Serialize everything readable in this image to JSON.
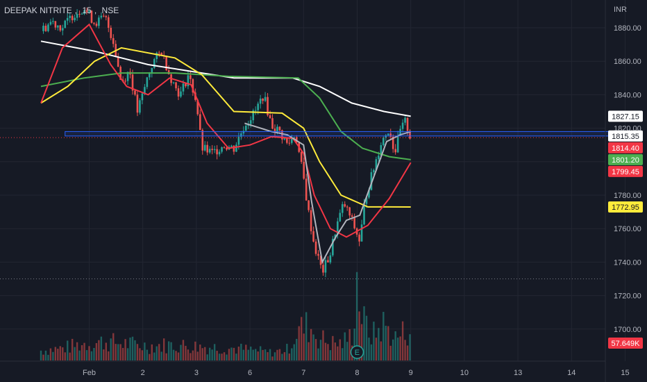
{
  "header": {
    "symbol": "DEEPAK NITRITE",
    "interval": "15",
    "exchange": "NSE",
    "currency": "INR"
  },
  "chart_data": {
    "type": "candlestick",
    "title": "DEEPAK NITRITE, 15, NSE",
    "currency": "INR",
    "ylim": [
      1690,
      1895
    ],
    "y_ticks": [
      1700,
      1720,
      1740,
      1760,
      1780,
      1800,
      1820,
      1840,
      1860,
      1880
    ],
    "y_tick_labels": [
      "1700.00",
      "1720.00",
      "1740.00",
      "1760.00",
      "1780.00",
      "1800.00",
      "1820.00",
      "1840.00",
      "1860.00",
      "1880.00"
    ],
    "x_ticks": [
      {
        "label": "Feb",
        "t": 0.9
      },
      {
        "label": "2",
        "t": 1.9
      },
      {
        "label": "3",
        "t": 2.9
      },
      {
        "label": "6",
        "t": 3.9
      },
      {
        "label": "7",
        "t": 4.9
      },
      {
        "label": "8",
        "t": 5.9
      },
      {
        "label": "9",
        "t": 6.9
      },
      {
        "label": "10",
        "t": 7.9
      },
      {
        "label": "13",
        "t": 8.9
      },
      {
        "label": "14",
        "t": 9.9
      },
      {
        "label": "15",
        "t": 10.9
      }
    ],
    "candle_colors": {
      "up": "#26a69a",
      "down": "#ef5350"
    },
    "price_path": [
      [
        0.0,
        1878
      ],
      [
        0.2,
        1884
      ],
      [
        0.4,
        1880
      ],
      [
        0.6,
        1888
      ],
      [
        0.8,
        1892
      ],
      [
        1.0,
        1883
      ],
      [
        1.2,
        1886
      ],
      [
        1.35,
        1872
      ],
      [
        1.5,
        1847
      ],
      [
        1.65,
        1855
      ],
      [
        1.8,
        1830
      ],
      [
        1.9,
        1840
      ],
      [
        2.0,
        1852
      ],
      [
        2.1,
        1860
      ],
      [
        2.25,
        1866
      ],
      [
        2.4,
        1852
      ],
      [
        2.5,
        1845
      ],
      [
        2.6,
        1840
      ],
      [
        2.75,
        1852
      ],
      [
        2.9,
        1836
      ],
      [
        3.0,
        1808
      ],
      [
        3.2,
        1805
      ],
      [
        3.4,
        1810
      ],
      [
        3.6,
        1808
      ],
      [
        3.8,
        1822
      ],
      [
        4.0,
        1830
      ],
      [
        4.15,
        1840
      ],
      [
        4.3,
        1822
      ],
      [
        4.45,
        1818
      ],
      [
        4.6,
        1810
      ],
      [
        4.75,
        1817
      ],
      [
        4.9,
        1790
      ],
      [
        5.0,
        1768
      ],
      [
        5.1,
        1750
      ],
      [
        5.25,
        1734
      ],
      [
        5.4,
        1745
      ],
      [
        5.5,
        1760
      ],
      [
        5.65,
        1775
      ],
      [
        5.8,
        1765
      ],
      [
        5.95,
        1752
      ],
      [
        6.05,
        1778
      ],
      [
        6.2,
        1795
      ],
      [
        6.35,
        1812
      ],
      [
        6.5,
        1820
      ],
      [
        6.6,
        1805
      ],
      [
        6.7,
        1818
      ],
      [
        6.8,
        1824
      ],
      [
        6.9,
        1814
      ]
    ],
    "volume_path": [
      [
        0.0,
        18
      ],
      [
        0.4,
        22
      ],
      [
        0.8,
        30
      ],
      [
        1.2,
        34
      ],
      [
        1.6,
        30
      ],
      [
        2.0,
        26
      ],
      [
        2.4,
        28
      ],
      [
        2.8,
        26
      ],
      [
        3.2,
        24
      ],
      [
        3.6,
        22
      ],
      [
        4.0,
        18
      ],
      [
        4.3,
        14
      ],
      [
        4.6,
        20
      ],
      [
        4.8,
        55
      ],
      [
        5.0,
        62
      ],
      [
        5.2,
        40
      ],
      [
        5.4,
        32
      ],
      [
        5.6,
        30
      ],
      [
        5.8,
        45
      ],
      [
        5.9,
        150
      ],
      [
        6.0,
        70
      ],
      [
        6.2,
        45
      ],
      [
        6.4,
        65
      ],
      [
        6.6,
        40
      ],
      [
        6.9,
        58
      ]
    ],
    "moving_averages": [
      {
        "color": "#ffffff",
        "points": [
          [
            0,
            1872
          ],
          [
            1,
            1866
          ],
          [
            2,
            1858
          ],
          [
            3,
            1853
          ],
          [
            3.6,
            1850
          ],
          [
            4.7,
            1850
          ],
          [
            5.2,
            1845
          ],
          [
            5.8,
            1835
          ],
          [
            6.4,
            1830
          ],
          [
            6.9,
            1827.15
          ]
        ]
      },
      {
        "color": "#4caf50",
        "points": [
          [
            0,
            1845
          ],
          [
            0.8,
            1850
          ],
          [
            1.5,
            1853
          ],
          [
            2.5,
            1853
          ],
          [
            3.5,
            1851
          ],
          [
            4.8,
            1850
          ],
          [
            5.2,
            1838
          ],
          [
            5.6,
            1818
          ],
          [
            6.0,
            1808
          ],
          [
            6.5,
            1803
          ],
          [
            6.9,
            1801.2
          ]
        ]
      },
      {
        "color": "#ffeb3b",
        "points": [
          [
            0,
            1835
          ],
          [
            0.5,
            1845
          ],
          [
            1.0,
            1860
          ],
          [
            1.5,
            1868
          ],
          [
            2.5,
            1862
          ],
          [
            3.0,
            1852
          ],
          [
            3.6,
            1830
          ],
          [
            4.5,
            1829
          ],
          [
            4.9,
            1820
          ],
          [
            5.2,
            1800
          ],
          [
            5.6,
            1780
          ],
          [
            6.1,
            1773
          ],
          [
            6.5,
            1773
          ],
          [
            6.9,
            1772.95
          ]
        ]
      },
      {
        "color": "#f23645",
        "points": [
          [
            0,
            1835
          ],
          [
            0.4,
            1868
          ],
          [
            0.9,
            1882
          ],
          [
            1.3,
            1858
          ],
          [
            1.6,
            1845
          ],
          [
            2.0,
            1840
          ],
          [
            2.4,
            1850
          ],
          [
            2.8,
            1846
          ],
          [
            3.1,
            1823
          ],
          [
            3.5,
            1808
          ],
          [
            3.9,
            1810
          ],
          [
            4.3,
            1815
          ],
          [
            4.7,
            1814
          ],
          [
            4.9,
            1805
          ],
          [
            5.1,
            1780
          ],
          [
            5.4,
            1760
          ],
          [
            5.7,
            1755
          ],
          [
            6.1,
            1762
          ],
          [
            6.5,
            1778
          ],
          [
            6.9,
            1799.45
          ]
        ]
      },
      {
        "color": "#b2b5be",
        "points": [
          [
            3.8,
            1823
          ],
          [
            4.3,
            1818
          ],
          [
            4.6,
            1816
          ],
          [
            4.9,
            1810
          ],
          [
            5.05,
            1776
          ],
          [
            5.25,
            1740
          ],
          [
            5.5,
            1755
          ],
          [
            5.7,
            1765
          ],
          [
            5.95,
            1768
          ],
          [
            6.2,
            1790
          ],
          [
            6.45,
            1812
          ],
          [
            6.7,
            1816
          ],
          [
            6.9,
            1818
          ]
        ]
      }
    ],
    "zone": {
      "t_start": 0.45,
      "t_end": 10.8,
      "y_low": 1815.35,
      "y_high": 1818.0,
      "color": "#2962ff"
    },
    "dotted_levels": [
      {
        "y": 1814.4,
        "color": "#f23645"
      },
      {
        "y": 1730.0,
        "color": "#787b86"
      }
    ],
    "price_labels": [
      {
        "text": "1827.15",
        "value": 1827.15,
        "bg": "#ffffff",
        "fg": "#131722"
      },
      {
        "text": "1815.35",
        "value": 1815.35,
        "bg": "#ffffff",
        "fg": "#131722"
      },
      {
        "text": "1814.40",
        "value": 1814.4,
        "bg": "#f23645",
        "fg": "#ffffff"
      },
      {
        "text": "1801.20",
        "value": 1801.2,
        "bg": "#4caf50",
        "fg": "#ffffff"
      },
      {
        "text": "1799.45",
        "value": 1799.45,
        "bg": "#f23645",
        "fg": "#ffffff"
      },
      {
        "text": "1772.95",
        "value": 1772.95,
        "bg": "#ffeb3b",
        "fg": "#131722"
      }
    ],
    "volume_label": {
      "text": "57.649K",
      "bg": "#f23645",
      "fg": "#ffffff"
    },
    "earnings_marker": {
      "label": "E",
      "t": 5.9
    }
  }
}
